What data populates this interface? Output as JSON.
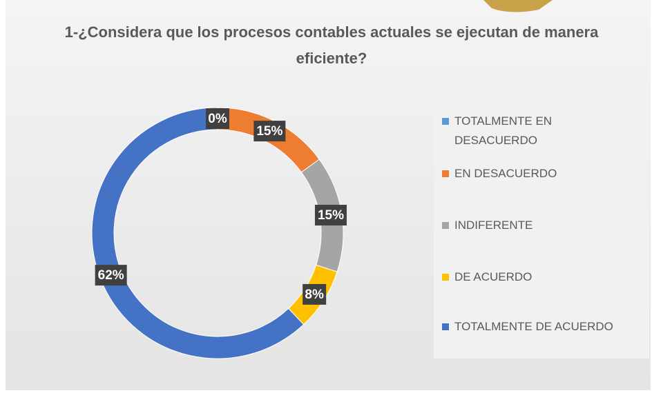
{
  "chart_data": {
    "type": "donut",
    "title": "1-¿Considera que los procesos contables actuales se ejecutan de manera eficiente?",
    "categories": [
      "TOTALMENTE EN DESACUERDO",
      "EN DESACUERDO",
      "INDIFERENTE",
      "DE ACUERDO",
      "TOTALMENTE DE ACUERDO"
    ],
    "values": [
      0,
      15,
      15,
      8,
      62
    ],
    "value_labels": [
      "0%",
      "15%",
      "15%",
      "8%",
      "62%"
    ],
    "colors": [
      "#5b9bd5",
      "#ed7d31",
      "#a5a5a5",
      "#ffc000",
      "#4472c4"
    ],
    "legend": "right"
  }
}
